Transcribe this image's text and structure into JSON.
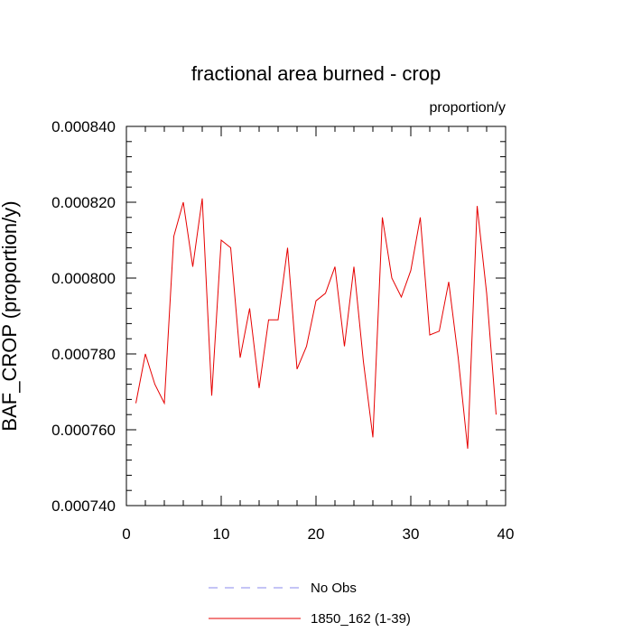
{
  "chart_data": {
    "type": "line",
    "title": "fractional area burned - crop",
    "units_label": "proportion/y",
    "ylabel": "BAF_CROP  (proportion/y)",
    "xlabel": "",
    "xlim": [
      0,
      40
    ],
    "ylim": [
      0.00074,
      0.00084
    ],
    "x_ticks": [
      0,
      10,
      20,
      30,
      40
    ],
    "x_tick_labels": [
      "0",
      "10",
      "20",
      "30",
      "40"
    ],
    "y_ticks": [
      0.00074,
      0.00076,
      0.00078,
      0.0008,
      0.00082,
      0.00084
    ],
    "y_tick_labels": [
      "0.000740",
      "0.000760",
      "0.000780",
      "0.000800",
      "0.000820",
      "0.000840"
    ],
    "grid": false,
    "legend_position": "bottom",
    "series": [
      {
        "name": "1850_162 (1-39)",
        "color": "#e60000",
        "style": "solid",
        "x": [
          1,
          2,
          3,
          4,
          5,
          6,
          7,
          8,
          9,
          10,
          11,
          12,
          13,
          14,
          15,
          16,
          17,
          18,
          19,
          20,
          21,
          22,
          23,
          24,
          25,
          26,
          27,
          28,
          29,
          30,
          31,
          32,
          33,
          34,
          35,
          36,
          37,
          38,
          39
        ],
        "values": [
          0.000767,
          0.00078,
          0.000772,
          0.000767,
          0.000811,
          0.00082,
          0.000803,
          0.000821,
          0.000769,
          0.00081,
          0.000808,
          0.000779,
          0.000792,
          0.000771,
          0.000789,
          0.000789,
          0.000808,
          0.000776,
          0.000782,
          0.000794,
          0.000796,
          0.000803,
          0.000782,
          0.000803,
          0.000778,
          0.000758,
          0.000816,
          0.0008,
          0.000795,
          0.000802,
          0.000816,
          0.000785,
          0.000786,
          0.000799,
          0.000779,
          0.000755,
          0.000819,
          0.000796,
          0.000764
        ]
      },
      {
        "name": "No Obs",
        "color": "#8888ee",
        "style": "dashed",
        "x": [],
        "values": []
      }
    ]
  }
}
